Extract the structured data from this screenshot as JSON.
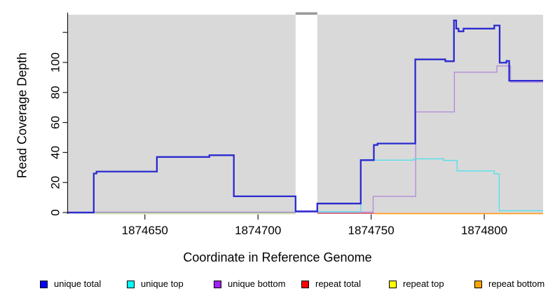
{
  "axes": {
    "x_label": "Coordinate in Reference Genome",
    "y_label": "Read Coverage Depth"
  },
  "chart_data": {
    "type": "line",
    "subtype": "step-coverage",
    "title": "",
    "xlabel": "Coordinate in Reference Genome",
    "ylabel": "Read Coverage Depth",
    "xlim": [
      1874616,
      1874826
    ],
    "ylim": [
      0,
      132
    ],
    "x_ticks": [
      1874650,
      1874700,
      1874750,
      1874800
    ],
    "y_ticks_labeled": [
      0,
      20,
      40,
      60,
      80,
      100
    ],
    "y_ticks_unlabeled": [
      120
    ],
    "grid": "off",
    "panel_background": "#d9d9d9",
    "gap_region": {
      "x_start": 1874716.6,
      "x_end": 1874726.2,
      "color": "#ffffff",
      "cap_color": "#999999",
      "note": "white vertical band with dark gray cap interrupting the gray panel"
    },
    "legend_position": "bottom",
    "legend": [
      {
        "id": "unique-total",
        "label": "unique total",
        "color": "#0000ff"
      },
      {
        "id": "unique-top",
        "label": "unique top",
        "color": "#00ffff"
      },
      {
        "id": "unique-bottom",
        "label": "unique bottom",
        "color": "#a020f0"
      },
      {
        "id": "repeat-total",
        "label": "repeat total",
        "color": "#ff0000"
      },
      {
        "id": "repeat-top",
        "label": "repeat top",
        "color": "#ffff00"
      },
      {
        "id": "repeat-bottom",
        "label": "repeat bottom",
        "color": "#ffa500"
      }
    ],
    "series": [
      {
        "id": "repeat-top",
        "name": "repeat top",
        "line_color": "#ece5c2",
        "width": 1.4,
        "points": [
          [
            1874628,
            0
          ],
          [
            1874716.6,
            0
          ]
        ]
      },
      {
        "id": "baseline-overlap",
        "name": "zero baseline overlap (unique top/bottom at 0)",
        "line_color": "#8fca8f",
        "width": 1.4,
        "points": [
          [
            1874628,
            0
          ],
          [
            1874716.6,
            0
          ]
        ]
      },
      {
        "id": "repeat-total",
        "name": "repeat total",
        "line_color": "#d94f66",
        "width": 1.4,
        "points": [
          [
            1874726.2,
            0
          ],
          [
            1874751.4,
            0
          ]
        ]
      },
      {
        "id": "repeat-bottom",
        "name": "repeat bottom",
        "line_color": "#ff9d1e",
        "width": 1.7,
        "points": [
          [
            1874751.4,
            0
          ],
          [
            1874826,
            0
          ]
        ]
      },
      {
        "id": "unique-bottom",
        "name": "unique bottom",
        "line_color": "#b48cd9",
        "width": 1.4,
        "points": [
          [
            1874616,
            0.3
          ],
          [
            1874750.9,
            0.3
          ],
          [
            1874750.9,
            10.7
          ],
          [
            1874769.7,
            10.7
          ],
          [
            1874769.7,
            67
          ],
          [
            1874786.8,
            67
          ],
          [
            1874786.8,
            93.5
          ],
          [
            1874805.6,
            93.5
          ],
          [
            1874805.6,
            97.7
          ],
          [
            1874811.6,
            97.7
          ],
          [
            1874811.6,
            86.9
          ],
          [
            1874826,
            86.9
          ]
        ]
      },
      {
        "id": "unique-top",
        "name": "unique top",
        "line_color": "#55dfec",
        "width": 1.4,
        "points": [
          [
            1874726.2,
            0.5
          ],
          [
            1874745.4,
            0.5
          ],
          [
            1874745.4,
            34.9
          ],
          [
            1874768.9,
            34.9
          ],
          [
            1874768.9,
            35.8
          ],
          [
            1874782,
            35.8
          ],
          [
            1874782,
            34.7
          ],
          [
            1874788,
            34.7
          ],
          [
            1874788,
            27.7
          ],
          [
            1874804.4,
            27.7
          ],
          [
            1874804.4,
            25.8
          ],
          [
            1874806.6,
            25.8
          ],
          [
            1874806.6,
            1.2
          ],
          [
            1874826,
            1.2
          ]
        ]
      },
      {
        "id": "unique-total",
        "name": "unique total",
        "line_color": "#2a2ad0",
        "width": 2.3,
        "points": [
          [
            1874616,
            0
          ],
          [
            1874627.4,
            0
          ],
          [
            1874627.4,
            26
          ],
          [
            1874628.6,
            26
          ],
          [
            1874628.6,
            27.3
          ],
          [
            1874655.3,
            27.3
          ],
          [
            1874655.3,
            37
          ],
          [
            1874678.5,
            37
          ],
          [
            1874678.5,
            38.2
          ],
          [
            1874689.3,
            38.2
          ],
          [
            1874689.3,
            10.8
          ],
          [
            1874716.6,
            10.8
          ],
          [
            1874716.6,
            0.8
          ],
          [
            1874726.2,
            0.8
          ],
          [
            1874726.2,
            6
          ],
          [
            1874745.4,
            6
          ],
          [
            1874745.4,
            34.9
          ],
          [
            1874751.2,
            34.9
          ],
          [
            1874751.2,
            45
          ],
          [
            1874752.8,
            45
          ],
          [
            1874752.8,
            46
          ],
          [
            1874769.5,
            46
          ],
          [
            1874769.5,
            102
          ],
          [
            1874782.8,
            102
          ],
          [
            1874782.8,
            100.8
          ],
          [
            1874786.6,
            100.8
          ],
          [
            1874786.6,
            128
          ],
          [
            1874787.6,
            128
          ],
          [
            1874787.6,
            122.5
          ],
          [
            1874788.6,
            122.5
          ],
          [
            1874788.6,
            120.7
          ],
          [
            1874790.8,
            120.7
          ],
          [
            1874790.8,
            122.5
          ],
          [
            1874804.4,
            122.5
          ],
          [
            1874804.4,
            124.6
          ],
          [
            1874806.8,
            124.6
          ],
          [
            1874806.8,
            99.8
          ],
          [
            1874809.8,
            99.8
          ],
          [
            1874809.8,
            101
          ],
          [
            1874811,
            101
          ],
          [
            1874811,
            87.8
          ],
          [
            1874826,
            87.8
          ]
        ]
      }
    ]
  }
}
